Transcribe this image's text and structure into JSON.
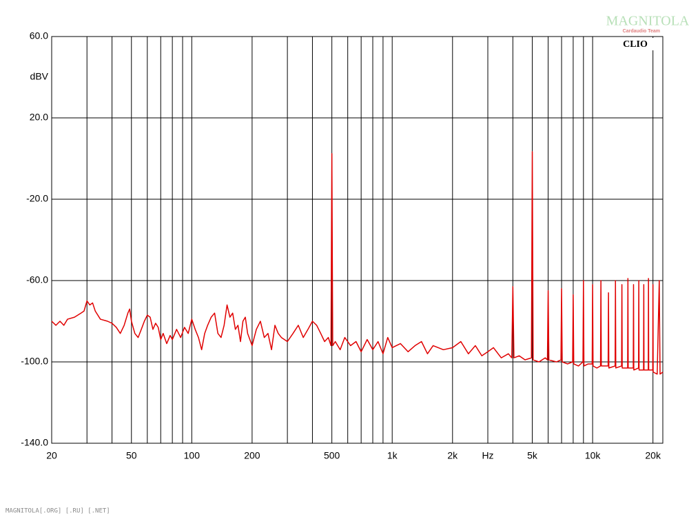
{
  "chart_data": {
    "type": "line",
    "ylabel": "dBV",
    "brand": "CLIO",
    "watermark": "MAGNITOLA",
    "watermark_sub": "Cardaudio Team",
    "footer": "MAGNITOLA[.ORG] [.RU] [.NET]",
    "color": "#e00000",
    "xscale": "log",
    "grid": true,
    "xlim": [
      20,
      22400
    ],
    "ylim": [
      -140,
      60
    ],
    "yticks": [
      {
        "value": 60,
        "label": "60.0"
      },
      {
        "value": 20,
        "label": "20.0"
      },
      {
        "value": -20,
        "label": "-20.0"
      },
      {
        "value": -60,
        "label": "-60.0"
      },
      {
        "value": -100,
        "label": "-100.0"
      },
      {
        "value": -140,
        "label": "-140.0"
      }
    ],
    "xticks": [
      20,
      50,
      100,
      200,
      500,
      {
        "value": 1000,
        "label": "1k"
      },
      {
        "value": 2000,
        "label": "2k"
      },
      {
        "value": 3000,
        "label": "Hz"
      },
      {
        "value": 5000,
        "label": "5k"
      },
      {
        "value": 10000,
        "label": "10k"
      },
      {
        "value": 20000,
        "label": "20k"
      }
    ],
    "x_minor_grid": [
      30,
      40,
      60,
      70,
      80,
      90,
      300,
      400,
      600,
      700,
      800,
      900,
      4000,
      6000,
      7000,
      8000,
      9000
    ],
    "x": [
      20,
      21,
      22,
      23,
      24,
      26,
      28,
      29,
      30,
      31,
      32,
      33,
      35,
      38,
      40,
      42,
      44,
      46,
      48,
      49,
      50,
      52,
      54,
      56,
      58,
      60,
      62,
      64,
      66,
      68,
      70,
      72,
      75,
      78,
      80,
      84,
      88,
      92,
      96,
      100,
      104,
      108,
      112,
      116,
      120,
      125,
      130,
      135,
      140,
      145,
      150,
      155,
      160,
      165,
      170,
      175,
      180,
      185,
      190,
      200,
      210,
      220,
      230,
      240,
      250,
      260,
      270,
      280,
      300,
      320,
      340,
      360,
      380,
      400,
      420,
      440,
      460,
      480,
      495,
      500,
      505,
      520,
      550,
      580,
      620,
      660,
      700,
      750,
      800,
      850,
      900,
      950,
      1000,
      1100,
      1200,
      1300,
      1400,
      1500,
      1600,
      1800,
      2000,
      2200,
      2400,
      2600,
      2800,
      3000,
      3200,
      3500,
      3800,
      3950,
      4000,
      4050,
      4300,
      4600,
      4950,
      5000,
      5050,
      5400,
      5800,
      5950,
      6000,
      6050,
      6600,
      6950,
      7000,
      7050,
      7500,
      7950,
      8000,
      8050,
      8500,
      8950,
      9000,
      9050,
      9500,
      9950,
      10000,
      10050,
      10500,
      10950,
      11000,
      11050,
      11950,
      12000,
      12050,
      12950,
      13000,
      13050,
      13950,
      14000,
      14050,
      14950,
      15000,
      15050,
      15950,
      16000,
      16050,
      16950,
      17000,
      17050,
      17950,
      18000,
      18050,
      18950,
      19000,
      19050,
      19950,
      20000,
      20050,
      21000,
      21500,
      21700,
      22400
    ],
    "values": [
      -80,
      -82,
      -80,
      -82,
      -79,
      -78,
      -76,
      -75,
      -70,
      -72,
      -71,
      -75,
      -79,
      -80,
      -81,
      -83,
      -86,
      -82,
      -76,
      -74,
      -80,
      -86,
      -88,
      -84,
      -80,
      -77,
      -78,
      -84,
      -81,
      -83,
      -89,
      -86,
      -91,
      -87,
      -89,
      -84,
      -88,
      -83,
      -86,
      -79,
      -84,
      -88,
      -94,
      -86,
      -82,
      -78,
      -76,
      -86,
      -88,
      -82,
      -72,
      -78,
      -76,
      -84,
      -82,
      -90,
      -80,
      -78,
      -86,
      -92,
      -84,
      -80,
      -88,
      -86,
      -94,
      -82,
      -86,
      -88,
      -90,
      -86,
      -82,
      -88,
      -84,
      -80,
      -82,
      -86,
      -90,
      -88,
      -92,
      2.4,
      -92,
      -90,
      -94,
      -88,
      -92,
      -90,
      -95,
      -89,
      -94,
      -90,
      -96,
      -88,
      -93,
      -91,
      -95,
      -92,
      -90,
      -96,
      -92,
      -94,
      -93,
      -90,
      -96,
      -92,
      -97,
      -95,
      -93,
      -98,
      -96,
      -98,
      -63,
      -98,
      -97,
      -99,
      -98,
      3.4,
      -99,
      -100,
      -98,
      -99,
      -65,
      -99,
      -100,
      -99,
      -64,
      -100,
      -101,
      -100,
      -67,
      -101,
      -102,
      -100,
      -60,
      -102,
      -101,
      -101,
      -62,
      -102,
      -103,
      -102,
      -60,
      -102,
      -102,
      -66,
      -103,
      -102,
      -60,
      -103,
      -102,
      -62,
      -103,
      -103,
      -59,
      -103,
      -103,
      -62,
      -104,
      -103,
      -60,
      -104,
      -104,
      -62,
      -104,
      -104,
      -59,
      -104,
      -104,
      -62,
      -105,
      -106,
      -60,
      -106,
      -105
    ]
  }
}
